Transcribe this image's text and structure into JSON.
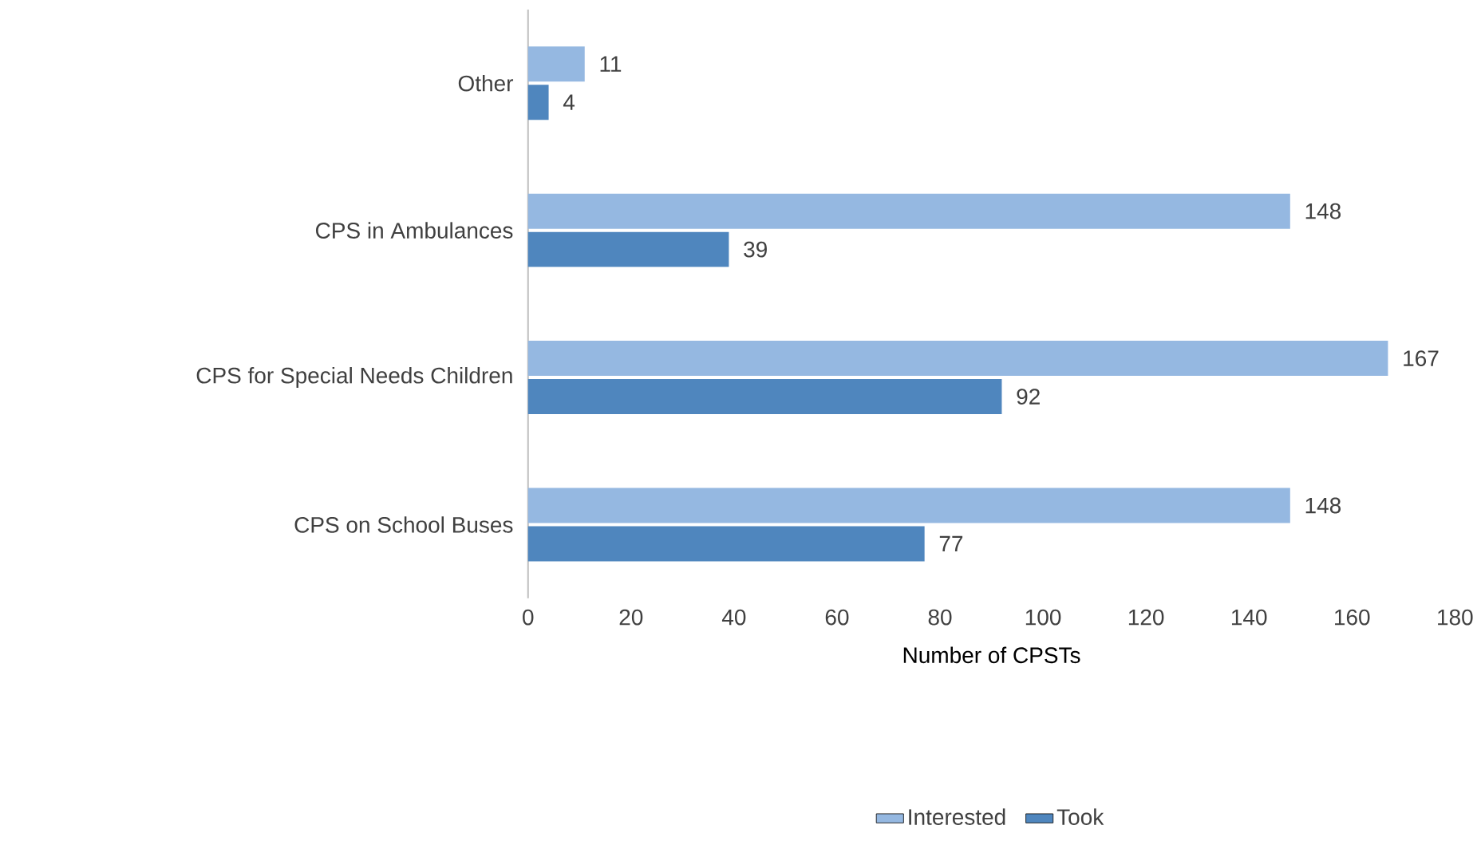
{
  "chart_data": {
    "type": "bar",
    "orientation": "horizontal",
    "categories": [
      "Other",
      "CPS in Ambulances",
      "CPS for Special Needs Children",
      "CPS on School Buses"
    ],
    "series": [
      {
        "name": "Interested",
        "color": "#95b8e1",
        "values": [
          11,
          148,
          167,
          148
        ]
      },
      {
        "name": "Took",
        "color": "#4f86be",
        "values": [
          4,
          39,
          92,
          77
        ]
      }
    ],
    "xlabel": "Number of CPSTs",
    "xlim": [
      0,
      180
    ],
    "xticks": [
      0,
      20,
      40,
      60,
      80,
      100,
      120,
      140,
      160,
      180
    ],
    "data_labels": true,
    "legend": "bottom",
    "grid": false
  }
}
